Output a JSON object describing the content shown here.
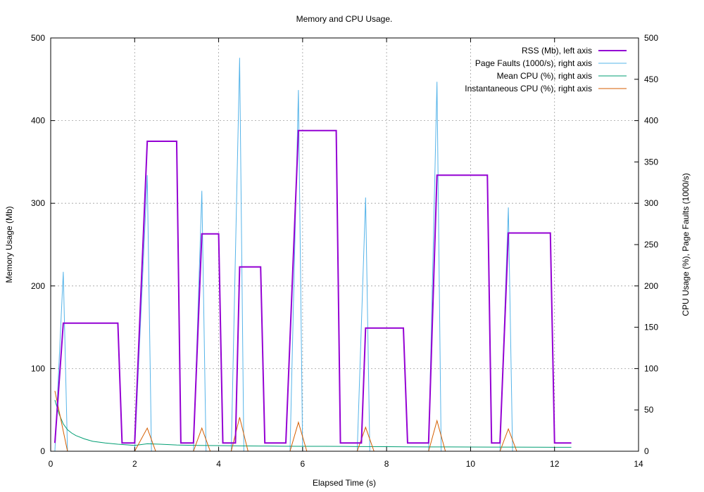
{
  "chart_data": {
    "type": "line",
    "title": "Memory and CPU Usage.",
    "xlabel": "Elapsed Time (s)",
    "ylabel_left": "Memory Usage (Mb)",
    "ylabel_right": "CPU Usage (%), Page Faults (1000/s)",
    "xlim": [
      0,
      14
    ],
    "ylim_left": [
      0,
      500
    ],
    "ylim_right": [
      0,
      500
    ],
    "x_ticks": [
      0,
      2,
      4,
      6,
      8,
      10,
      12,
      14
    ],
    "y_ticks_left": [
      0,
      100,
      200,
      300,
      400,
      500
    ],
    "y_ticks_right": [
      0,
      50,
      100,
      150,
      200,
      250,
      300,
      350,
      400,
      450,
      500
    ],
    "grid": true,
    "legend_position": "top-right",
    "series": [
      {
        "name": "RSS (Mb), left axis",
        "axis": "left",
        "color": "#9400d3",
        "x": [
          0.1,
          0.3,
          1.6,
          1.7,
          2.0,
          2.3,
          3.0,
          3.1,
          3.4,
          3.6,
          4.0,
          4.1,
          4.4,
          4.5,
          5.0,
          5.1,
          5.6,
          5.9,
          6.8,
          6.9,
          7.4,
          7.5,
          8.4,
          8.5,
          9.0,
          9.2,
          10.4,
          10.5,
          10.7,
          10.9,
          11.9,
          12.0,
          12.4
        ],
        "y": [
          10,
          155,
          155,
          10,
          10,
          375,
          375,
          10,
          10,
          263,
          263,
          10,
          10,
          223,
          223,
          10,
          10,
          388,
          388,
          10,
          10,
          149,
          149,
          10,
          10,
          334,
          334,
          10,
          10,
          264,
          264,
          10,
          10
        ]
      },
      {
        "name": "Page Faults (1000/s), right axis",
        "axis": "right",
        "color": "#56b4e9",
        "x": [
          0.1,
          0.3,
          0.4,
          0.5,
          2.0,
          2.3,
          2.4,
          2.5,
          3.4,
          3.6,
          3.7,
          3.8,
          4.3,
          4.5,
          4.6,
          4.7,
          5.7,
          5.9,
          6.0,
          6.1,
          7.3,
          7.5,
          7.6,
          7.7,
          9.0,
          9.2,
          9.3,
          9.4,
          10.7,
          10.9,
          11.0,
          11.1
        ],
        "y": [
          0,
          217,
          0,
          0,
          0,
          334,
          0,
          0,
          0,
          315,
          0,
          0,
          0,
          476,
          0,
          0,
          0,
          437,
          0,
          0,
          0,
          307,
          0,
          0,
          0,
          447,
          0,
          0,
          0,
          295,
          0,
          0
        ]
      },
      {
        "name": "Mean CPU (%), right axis",
        "axis": "right",
        "color": "#009e73",
        "x": [
          0.1,
          0.2,
          0.3,
          0.4,
          0.5,
          0.6,
          0.8,
          1.0,
          1.3,
          1.6,
          2.0,
          2.3,
          2.6,
          3.0,
          3.5,
          4.0,
          4.5,
          5.0,
          5.5,
          6.0,
          6.5,
          7.0,
          7.5,
          8.0,
          8.5,
          9.0,
          9.5,
          10.0,
          10.5,
          11.0,
          11.5,
          12.0,
          12.4
        ],
        "y": [
          62,
          45,
          33,
          26,
          22,
          19,
          15,
          12,
          10,
          8.5,
          7,
          9,
          8.5,
          7.5,
          7,
          6.8,
          6.5,
          6.3,
          6.1,
          6,
          5.9,
          5.8,
          5.6,
          5.5,
          5.3,
          5.2,
          5.2,
          5.1,
          5,
          5,
          4.9,
          4.8,
          4.8
        ]
      },
      {
        "name": "Instantaneous CPU (%), right axis",
        "axis": "right",
        "color": "#d55e00",
        "x": [
          0.1,
          0.4,
          2.0,
          2.3,
          2.5,
          3.4,
          3.6,
          3.8,
          4.3,
          4.5,
          4.7,
          5.7,
          5.9,
          6.1,
          7.3,
          7.5,
          7.7,
          9.0,
          9.2,
          9.4,
          10.7,
          10.9,
          11.1
        ],
        "y": [
          73,
          0,
          0,
          28,
          0,
          0,
          28,
          0,
          0,
          41,
          0,
          0,
          35,
          0,
          0,
          29,
          0,
          0,
          37,
          0,
          0,
          27,
          0
        ]
      }
    ]
  }
}
